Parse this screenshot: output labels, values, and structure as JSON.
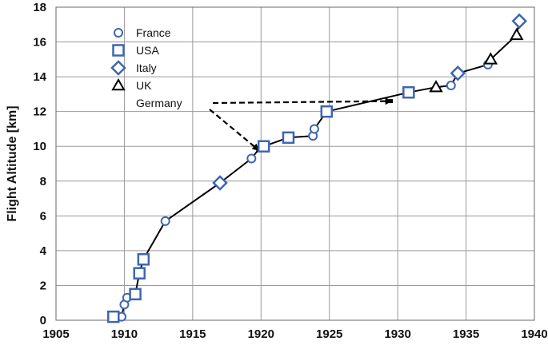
{
  "chart_data": {
    "type": "scatter",
    "title": "",
    "xlabel": "",
    "ylabel": "Flight  Altitude  [km]",
    "xlim": [
      1905,
      1940
    ],
    "ylim": [
      0,
      18
    ],
    "x_ticks": [
      1905,
      1910,
      1915,
      1920,
      1925,
      1930,
      1935,
      1940
    ],
    "y_ticks": [
      0,
      2,
      4,
      6,
      8,
      10,
      12,
      14,
      16,
      18
    ],
    "grid": true,
    "legend_position": "top-left",
    "colors": {
      "marker": "#3e66b0",
      "uk": "#000000",
      "line": "#000000"
    },
    "series": [
      {
        "name": "France",
        "marker": "circle",
        "points": [
          [
            1909.8,
            0.2
          ],
          [
            1910.0,
            0.9
          ],
          [
            1910.2,
            1.3
          ],
          [
            1913.0,
            5.7
          ],
          [
            1919.3,
            9.3
          ],
          [
            1923.8,
            10.6
          ],
          [
            1923.9,
            11.0
          ],
          [
            1933.9,
            13.5
          ],
          [
            1936.6,
            14.7
          ]
        ]
      },
      {
        "name": "USA",
        "marker": "square",
        "points": [
          [
            1909.2,
            0.2
          ],
          [
            1910.8,
            1.5
          ],
          [
            1911.1,
            2.7
          ],
          [
            1911.4,
            3.5
          ],
          [
            1920.2,
            10.0
          ],
          [
            1922.0,
            10.5
          ],
          [
            1924.8,
            12.0
          ],
          [
            1930.8,
            13.1
          ]
        ]
      },
      {
        "name": "Italy",
        "marker": "diamond",
        "points": [
          [
            1917.0,
            7.9
          ],
          [
            1934.4,
            14.2
          ],
          [
            1938.9,
            17.2
          ]
        ]
      },
      {
        "name": "UK",
        "marker": "triangle",
        "points": [
          [
            1932.8,
            13.4
          ],
          [
            1936.8,
            15.0
          ],
          [
            1938.7,
            16.4
          ]
        ]
      },
      {
        "name": "Germany",
        "marker": "none",
        "points": [
          [
            1919.8,
            9.8
          ],
          [
            1929.5,
            12.6
          ]
        ]
      }
    ],
    "trend_line": [
      [
        1909.2,
        0.2
      ],
      [
        1909.8,
        0.2
      ],
      [
        1910.0,
        0.9
      ],
      [
        1910.2,
        1.3
      ],
      [
        1910.8,
        1.5
      ],
      [
        1911.1,
        2.7
      ],
      [
        1911.4,
        3.5
      ],
      [
        1913.0,
        5.7
      ],
      [
        1917.0,
        7.9
      ],
      [
        1919.3,
        9.3
      ],
      [
        1919.8,
        9.8
      ],
      [
        1920.2,
        10.0
      ],
      [
        1922.0,
        10.5
      ],
      [
        1923.8,
        10.6
      ],
      [
        1923.9,
        11.0
      ],
      [
        1924.8,
        12.0
      ],
      [
        1930.8,
        13.1
      ],
      [
        1932.8,
        13.4
      ],
      [
        1933.9,
        13.5
      ],
      [
        1934.4,
        14.2
      ],
      [
        1936.6,
        14.7
      ],
      [
        1936.8,
        15.0
      ],
      [
        1938.7,
        16.4
      ],
      [
        1938.9,
        17.2
      ]
    ],
    "annotations": [
      {
        "text": "Germany",
        "arrows_to": [
          [
            1919.8,
            9.8
          ],
          [
            1929.5,
            12.6
          ]
        ]
      }
    ]
  }
}
